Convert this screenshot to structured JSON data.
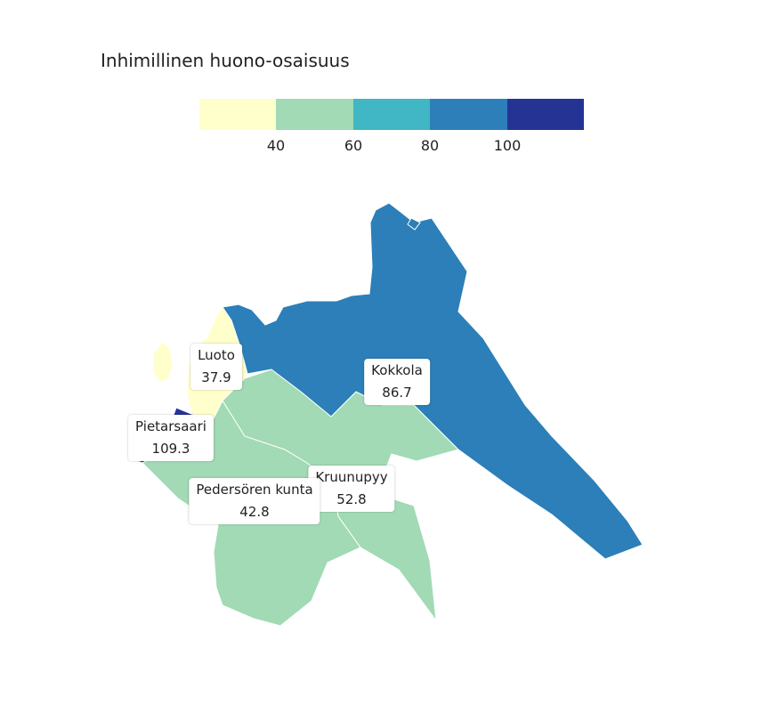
{
  "title": "Inhimillinen huono-osaisuus",
  "legend": {
    "colors": [
      "#ffffcc",
      "#a1dab4",
      "#41b6c4",
      "#2c7fb8",
      "#253494"
    ],
    "ticks": [
      "40",
      "60",
      "80",
      "100"
    ]
  },
  "regions": [
    {
      "name": "Luoto",
      "value": "37.9",
      "color": "#ffffcc"
    },
    {
      "name": "Kokkola",
      "value": "86.7",
      "color": "#2c7fb8"
    },
    {
      "name": "Pietarsaari",
      "value": "109.3",
      "color": "#253494"
    },
    {
      "name": "Kruunupyy",
      "value": "52.8",
      "color": "#a1dab4"
    },
    {
      "name": "Pedersören kunta",
      "value": "42.8",
      "color": "#a1dab4"
    }
  ]
}
